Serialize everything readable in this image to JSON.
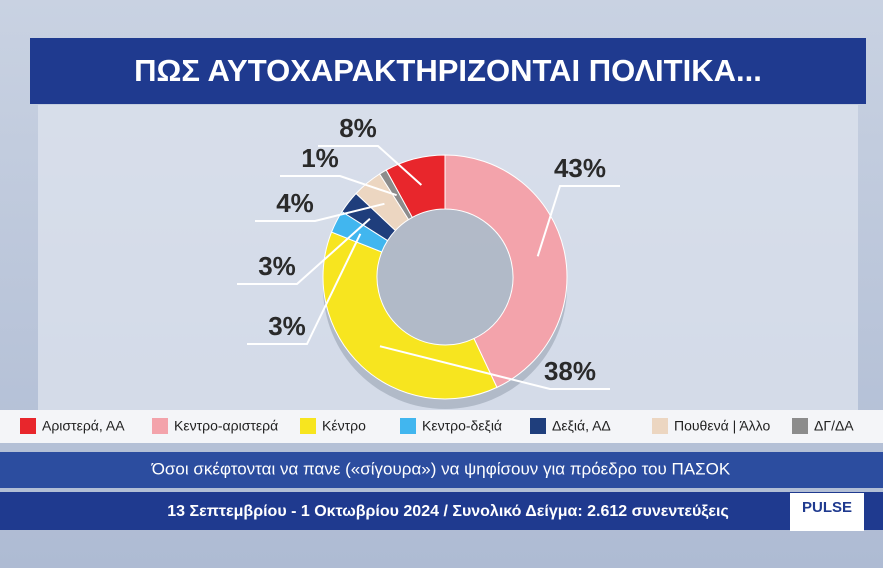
{
  "chart_data": {
    "type": "donut",
    "title": "ΠΩΣ ΑΥΤΟΧΑΡΑΚΤΗΡΙΖΟΝΤΑΙ ΠΟΛΙΤΙΚΑ...",
    "categories": [
      "Αριστερά, ΑΑ",
      "Κεντρο-αριστερά",
      "Κέντρο",
      "Κεντρο-δεξιά",
      "Δεξιά, ΑΔ",
      "Πουθενά | Άλλο",
      "ΔΓ/ΔΑ"
    ],
    "values": [
      8,
      43,
      38,
      3,
      3,
      4,
      1
    ],
    "value_labels": [
      "8%",
      "43%",
      "38%",
      "3%",
      "3%",
      "4%",
      "1%"
    ],
    "colors": [
      "#e8262c",
      "#f3a3ab",
      "#f7e51f",
      "#41b6ef",
      "#1f3e7c",
      "#ecd6c1",
      "#8c8c8c"
    ],
    "subtitle": "Όσοι σκέφτονται να πανε («σίγουρα») να ψηφίσουν για πρόεδρο του ΠΑΣΟΚ",
    "footer": "13 Σεπτεμβρίου - 1 Οκτωβρίου 2024 / Συνολικό Δείγμα: 2.612 συνεντεύξεις",
    "logo": "PULSE"
  }
}
